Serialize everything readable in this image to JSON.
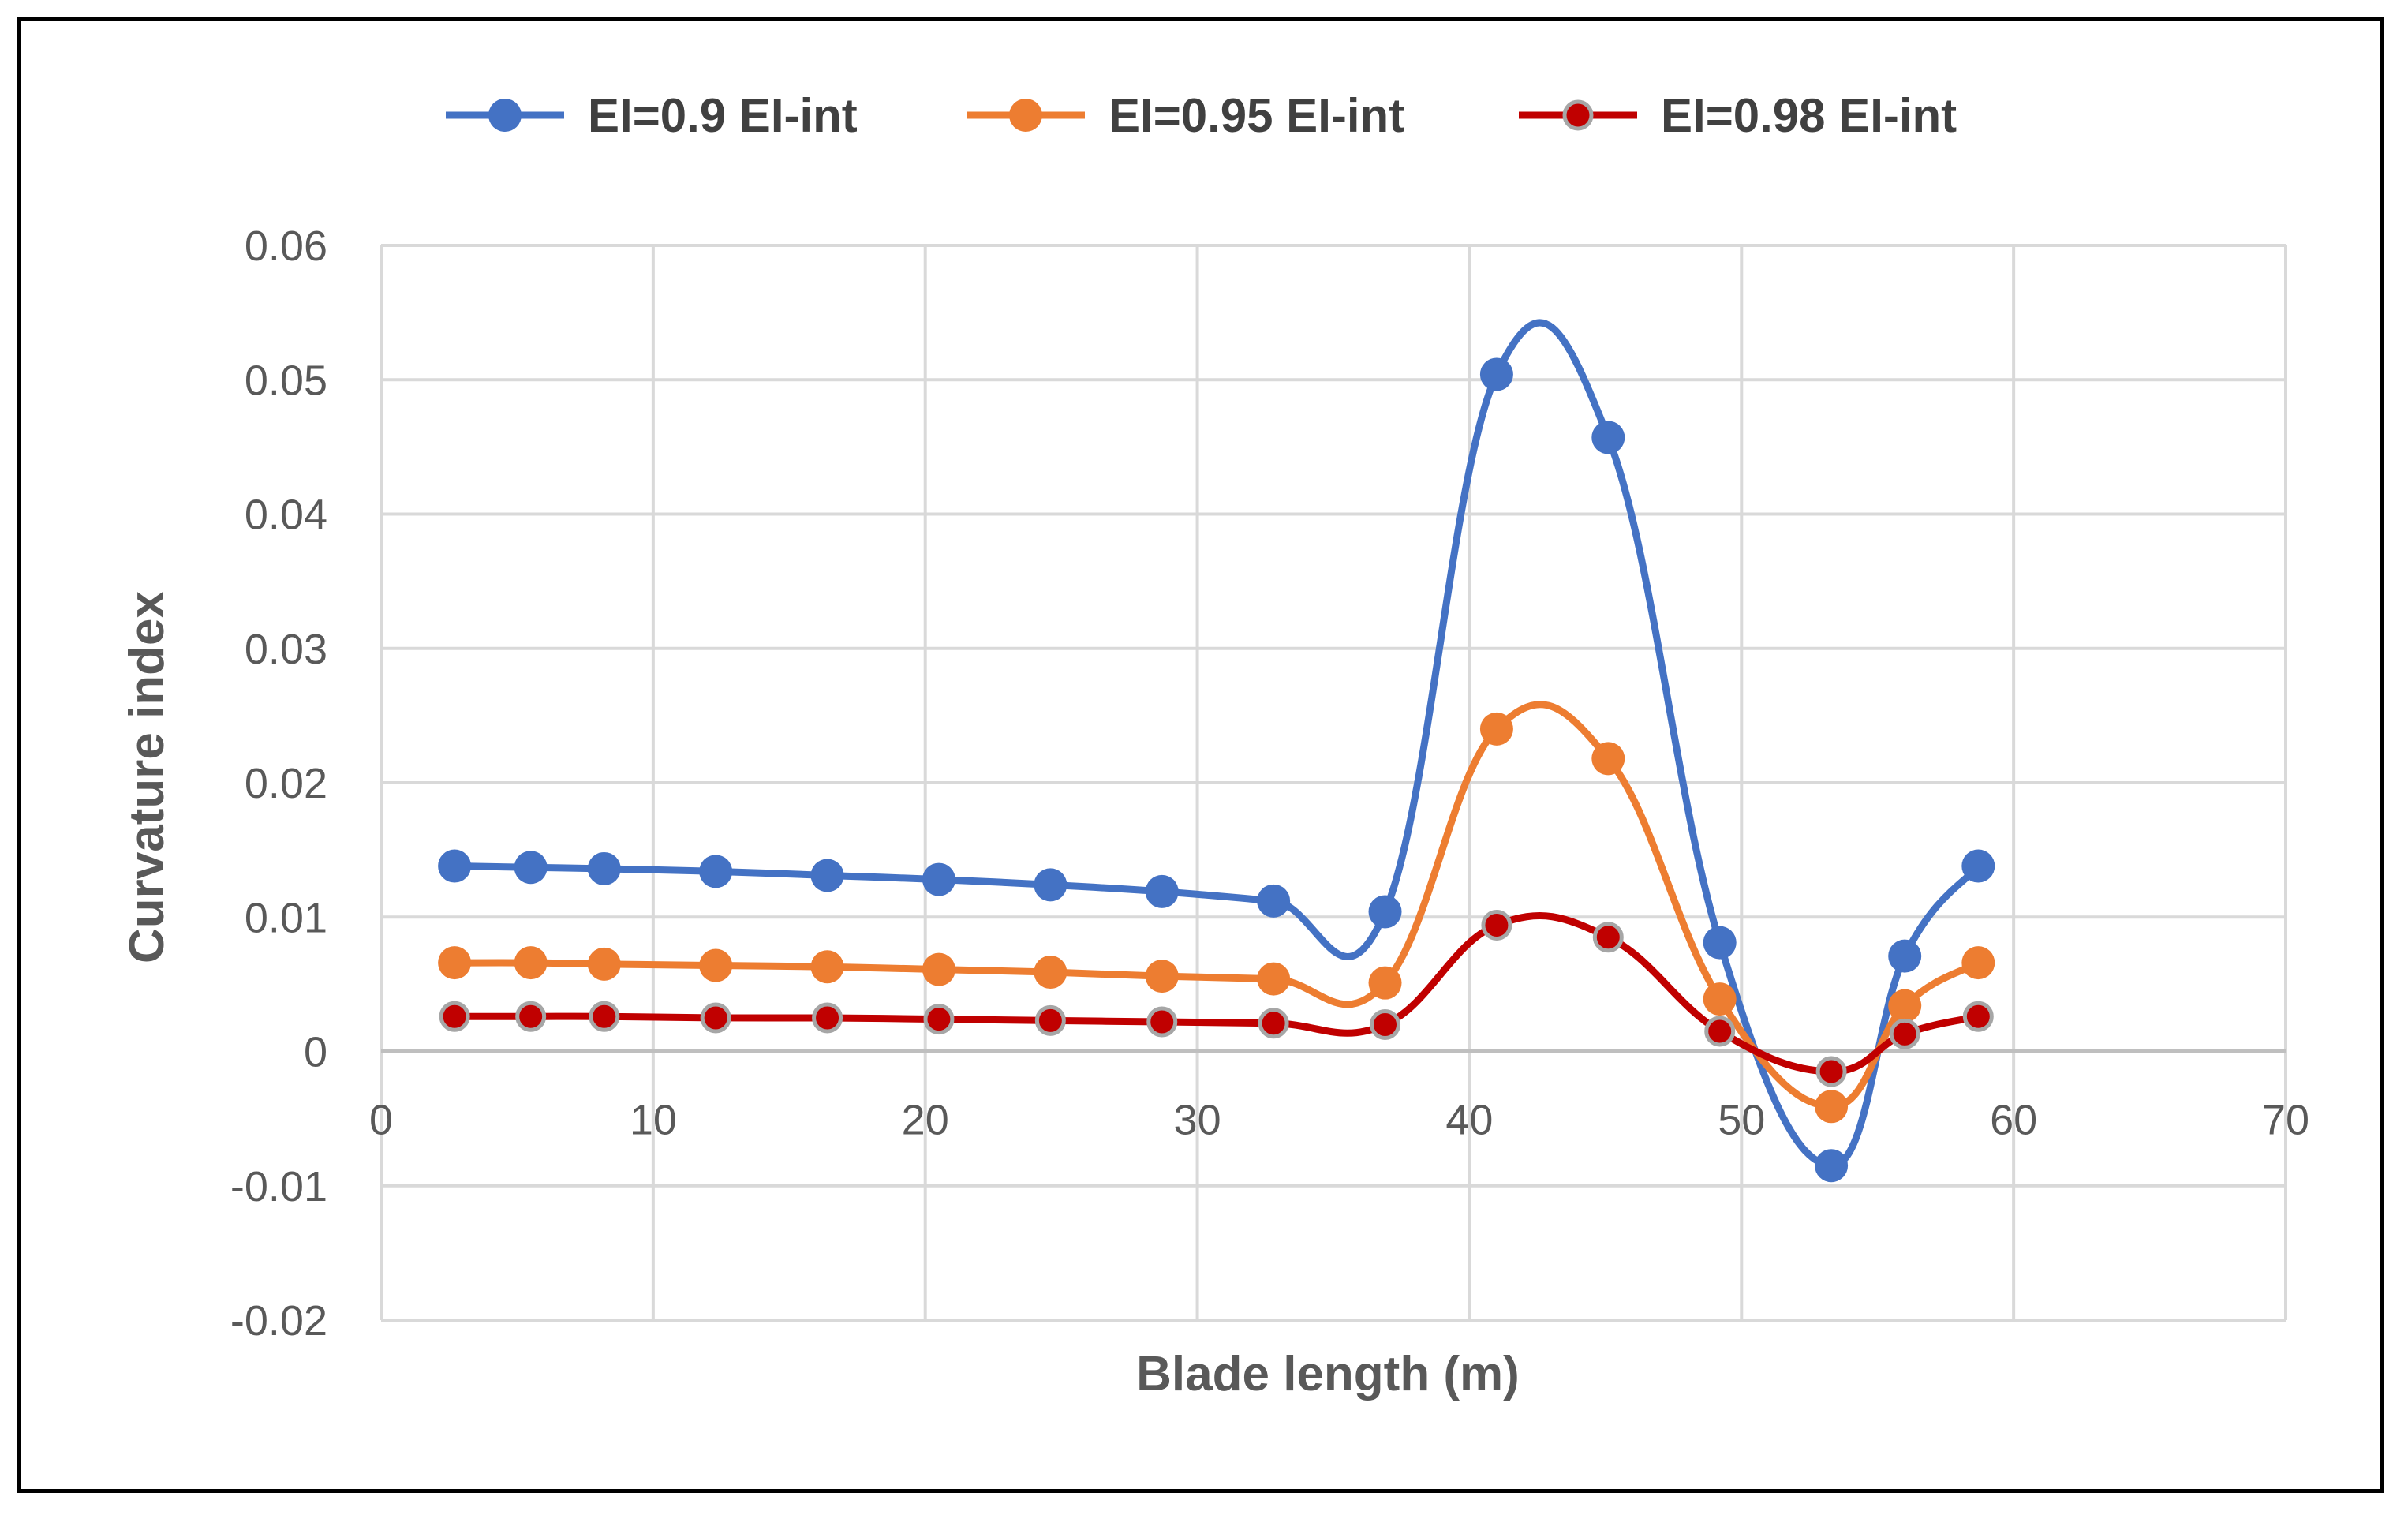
{
  "chart_data": {
    "type": "line",
    "title": "",
    "xlabel": "Blade length (m)",
    "ylabel": "Curvature index",
    "xlim": [
      0,
      70
    ],
    "ylim": [
      -0.02,
      0.06
    ],
    "xticks": [
      0,
      10,
      20,
      30,
      40,
      50,
      60,
      70
    ],
    "yticks": [
      -0.02,
      -0.01,
      0,
      0.01,
      0.02,
      0.03,
      0.04,
      0.05,
      0.06
    ],
    "xtick_labels": [
      "0",
      "10",
      "20",
      "30",
      "40",
      "50",
      "60",
      "70"
    ],
    "ytick_labels": [
      "-0.02",
      "-0.01",
      "0",
      "0.01",
      "0.02",
      "0.03",
      "0.04",
      "0.05",
      "0.06"
    ],
    "grid": true,
    "legend_position": "top",
    "x": [
      2.7,
      5.5,
      8.2,
      12.3,
      16.4,
      20.5,
      24.6,
      28.7,
      32.8,
      36.9,
      41.0,
      45.1,
      49.2,
      53.3,
      56.0,
      58.7
    ],
    "series": [
      {
        "name": "EI=0.9 EI-int",
        "color": "#4472C4",
        "values": [
          0.0138,
          0.0137,
          0.0136,
          0.0134,
          0.0131,
          0.0128,
          0.0124,
          0.0119,
          0.0112,
          0.0104,
          0.0504,
          0.0457,
          0.0081,
          -0.0085,
          0.0071,
          0.0138
        ]
      },
      {
        "name": "EI=0.95 EI-int",
        "color": "#ED7D31",
        "values": [
          0.0066,
          0.0066,
          0.0065,
          0.0064,
          0.0063,
          0.0061,
          0.0059,
          0.0056,
          0.0054,
          0.0051,
          0.024,
          0.0218,
          0.0039,
          -0.0041,
          0.0034,
          0.0066
        ]
      },
      {
        "name": "EI=0.98 EI-int",
        "color": "#C00000",
        "values": [
          0.0026,
          0.0026,
          0.0026,
          0.0025,
          0.0025,
          0.0024,
          0.0023,
          0.0022,
          0.0021,
          0.002,
          0.0094,
          0.0085,
          0.0015,
          -0.0015,
          0.0013,
          0.0026
        ]
      }
    ]
  }
}
